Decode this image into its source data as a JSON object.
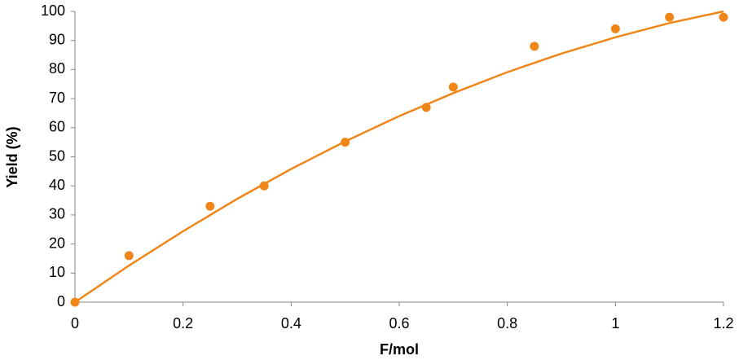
{
  "chart_data": {
    "type": "scatter",
    "x_label": "F/mol",
    "y_label": "Yield (%)",
    "x": [
      0,
      0.1,
      0.25,
      0.35,
      0.5,
      0.65,
      0.7,
      0.85,
      1,
      1.1,
      1.2
    ],
    "values": [
      0,
      16,
      33,
      40,
      55,
      67,
      74,
      88,
      94,
      98,
      98
    ],
    "color": "#f0861a",
    "fit": {
      "x": [
        0,
        0.1,
        0.2,
        0.3,
        0.4,
        0.5,
        0.6,
        0.7,
        0.8,
        0.9,
        1.0,
        1.1,
        1.2
      ],
      "y": [
        0,
        12.6,
        24.4,
        35.5,
        45.8,
        55.3,
        64.0,
        71.9,
        79.1,
        85.5,
        91.1,
        96.0,
        100.0
      ]
    },
    "xlim": [
      0,
      1.2
    ],
    "xticks": [
      0,
      0.2,
      0.4,
      0.6,
      0.8,
      1,
      1.2
    ],
    "ylim": [
      0,
      100
    ],
    "yticks": [
      0,
      10,
      20,
      30,
      40,
      50,
      60,
      70,
      80,
      90,
      100
    ],
    "grid": false
  }
}
